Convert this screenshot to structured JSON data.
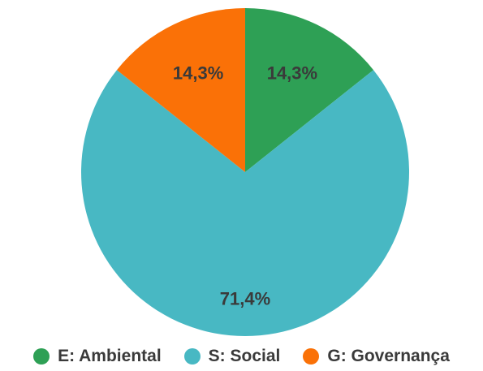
{
  "chart_data": {
    "type": "pie",
    "categories": [
      "E: Ambiental",
      "S: Social",
      "G: Governança"
    ],
    "values": [
      14.3,
      71.4,
      14.3
    ],
    "slice_labels": [
      "14,3%",
      "71,4%",
      "14,3%"
    ],
    "colors": [
      "#2ea055",
      "#48b8c3",
      "#fa7107"
    ],
    "start": "top",
    "direction": "clockwise",
    "legend_position": "bottom"
  }
}
